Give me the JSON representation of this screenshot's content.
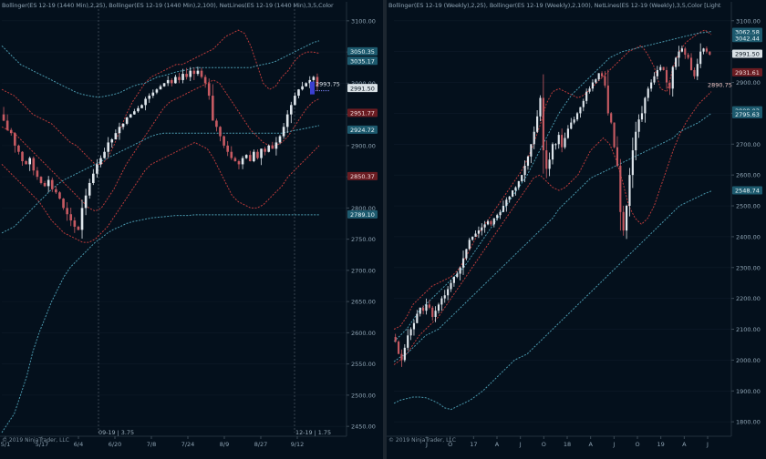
{
  "colors": {
    "background": "#04101c",
    "candle_up": "#dfe6ec",
    "candle_down": "#c65a62",
    "boll_short": "#b93a3a",
    "boll_long": "#4a98ad",
    "axis_text": "#8ea3b3"
  },
  "left_panel": {
    "indicator_labels": [
      "Bollinger(ES 12-19 (1440 Min),2,25)",
      "Bollinger(ES 12-19 (1440 Min),2,100)",
      "NetLines(ES 12-19 (1440 Min),3,5,Color"
    ],
    "copyright": "© 2019 NinjaTrader, LLC",
    "session_labels": [
      "09-19 | 3.75",
      "12-19 | 1.75"
    ],
    "last_price_label": "2993.75"
  },
  "right_panel": {
    "indicator_labels": [
      "Bollinger(ES 12-19 (Weekly),2,25)",
      "Bollinger(ES 12-19 (Weekly),2,100)",
      "NetLines(ES 12-19 (Weekly),3,5,Color [Light"
    ],
    "copyright": "© 2019 NinjaTrader, LLC",
    "last_price_label": "2890.75"
  },
  "chart_data": [
    {
      "type": "candlestick",
      "timeframe": "1440 Min",
      "x_ticks": [
        "5/1",
        "5/17",
        "6/4",
        "6/20",
        "7/8",
        "7/24",
        "8/9",
        "8/27",
        "9/12"
      ],
      "y_ticks": [
        2450,
        2500,
        2550,
        2600,
        2650,
        2700,
        2750,
        2800,
        2850,
        2900,
        2950,
        3000,
        3050,
        3100
      ],
      "ylim": [
        2440,
        3110
      ],
      "price_tags": [
        {
          "text": "3050.35",
          "value": 3050.35,
          "style": "cyan"
        },
        {
          "text": "3035.17",
          "value": 3035.17,
          "style": "cyan"
        },
        {
          "text": "2991.50",
          "value": 2991.5,
          "style": "white"
        },
        {
          "text": "2951.77",
          "value": 2951.77,
          "style": "red"
        },
        {
          "text": "2924.72",
          "value": 2924.72,
          "style": "cyan"
        },
        {
          "text": "2850.37",
          "value": 2850.37,
          "style": "red"
        },
        {
          "text": "2789.10",
          "value": 2789.1,
          "style": "cyan"
        }
      ],
      "close": [
        2940,
        2925,
        2920,
        2900,
        2890,
        2875,
        2870,
        2880,
        2860,
        2850,
        2840,
        2835,
        2845,
        2830,
        2825,
        2815,
        2800,
        2790,
        2780,
        2770,
        2765,
        2800,
        2820,
        2840,
        2855,
        2870,
        2880,
        2890,
        2905,
        2910,
        2920,
        2930,
        2935,
        2945,
        2950,
        2955,
        2960,
        2965,
        2975,
        2980,
        2985,
        2990,
        2995,
        3000,
        3005,
        3000,
        3010,
        3005,
        3015,
        3010,
        3020,
        3015,
        3020,
        3010,
        3000,
        2980,
        2940,
        2930,
        2915,
        2900,
        2890,
        2880,
        2875,
        2870,
        2880,
        2885,
        2875,
        2890,
        2880,
        2895,
        2890,
        2900,
        2895,
        2905,
        2915,
        2930,
        2950,
        2965,
        2980,
        2990,
        2995,
        3000,
        3005,
        3010,
        2995
      ],
      "series": [
        {
          "name": "BB25 upper",
          "values": [
            2990,
            2985,
            2980,
            2970,
            2960,
            2950,
            2945,
            2940,
            2935,
            2925,
            2915,
            2905,
            2900,
            2890,
            2880,
            2870,
            2870,
            2880,
            2900,
            2925,
            2950,
            2970,
            2985,
            3000,
            3010,
            3015,
            3020,
            3025,
            3030,
            3030,
            3035,
            3040,
            3045,
            3050,
            3055,
            3065,
            3075,
            3080,
            3085,
            3080,
            3060,
            3030,
            3000,
            2990,
            2995,
            3010,
            3020,
            3035,
            3045,
            3050,
            3050,
            3048
          ],
          "style": "red-dotted"
        },
        {
          "name": "BB25 mid",
          "values": [
            2930,
            2925,
            2920,
            2910,
            2900,
            2890,
            2880,
            2870,
            2860,
            2850,
            2840,
            2830,
            2820,
            2810,
            2800,
            2795,
            2800,
            2815,
            2830,
            2850,
            2870,
            2885,
            2900,
            2915,
            2930,
            2945,
            2960,
            2970,
            2975,
            2980,
            2985,
            2990,
            2995,
            3000,
            3005,
            3000,
            2985,
            2970,
            2955,
            2940,
            2925,
            2915,
            2905,
            2900,
            2900,
            2905,
            2915,
            2930,
            2945,
            2960,
            2970,
            2975
          ],
          "style": "red-dotted"
        },
        {
          "name": "BB25 lower",
          "values": [
            2870,
            2860,
            2850,
            2840,
            2830,
            2820,
            2810,
            2795,
            2780,
            2770,
            2760,
            2755,
            2750,
            2745,
            2745,
            2750,
            2760,
            2770,
            2785,
            2800,
            2815,
            2830,
            2845,
            2860,
            2870,
            2875,
            2880,
            2885,
            2890,
            2895,
            2900,
            2905,
            2900,
            2895,
            2880,
            2860,
            2840,
            2820,
            2810,
            2805,
            2800,
            2800,
            2805,
            2815,
            2825,
            2835,
            2850,
            2860,
            2870,
            2880,
            2890,
            2900
          ],
          "style": "red-dotted"
        },
        {
          "name": "BB100 upper",
          "values": [
            3060,
            3050,
            3040,
            3030,
            3025,
            3020,
            3015,
            3010,
            3005,
            3000,
            2995,
            2990,
            2985,
            2982,
            2980,
            2978,
            2978,
            2980,
            2982,
            2985,
            2990,
            2995,
            2998,
            3000,
            3005,
            3010,
            3012,
            3015,
            3018,
            3020,
            3022,
            3025,
            3025,
            3025,
            3025,
            3025,
            3025,
            3025,
            3025,
            3025,
            3025,
            3028,
            3030,
            3032,
            3035,
            3040,
            3045,
            3050,
            3055,
            3060,
            3065,
            3068
          ],
          "style": "cyan-dotted"
        },
        {
          "name": "BB100 mid",
          "values": [
            2760,
            2765,
            2770,
            2780,
            2790,
            2800,
            2810,
            2820,
            2830,
            2838,
            2845,
            2850,
            2855,
            2860,
            2865,
            2870,
            2875,
            2880,
            2885,
            2890,
            2895,
            2900,
            2905,
            2910,
            2915,
            2918,
            2920,
            2920,
            2920,
            2920,
            2920,
            2920,
            2920,
            2920,
            2920,
            2920,
            2920,
            2920,
            2920,
            2920,
            2920,
            2920,
            2920,
            2920,
            2920,
            2920,
            2922,
            2924,
            2926,
            2928,
            2930,
            2932
          ],
          "style": "cyan-dotted"
        },
        {
          "name": "BB100 lower",
          "values": [
            2440,
            2455,
            2470,
            2500,
            2530,
            2570,
            2600,
            2625,
            2650,
            2670,
            2690,
            2705,
            2715,
            2725,
            2735,
            2745,
            2752,
            2760,
            2766,
            2770,
            2775,
            2778,
            2780,
            2782,
            2784,
            2785,
            2786,
            2787,
            2788,
            2788,
            2788,
            2789,
            2789,
            2789,
            2789,
            2789,
            2789,
            2789,
            2789,
            2789,
            2789,
            2789,
            2789,
            2789,
            2789,
            2789,
            2789,
            2789,
            2789,
            2789,
            2789,
            2789
          ],
          "style": "cyan-dotted"
        }
      ]
    },
    {
      "type": "candlestick",
      "timeframe": "Weekly",
      "x_ticks": [
        "J",
        "O",
        "17",
        "A",
        "J",
        "O",
        "18",
        "A",
        "J",
        "O",
        "19",
        "A",
        "J"
      ],
      "y_ticks": [
        1800,
        1900,
        2000,
        2100,
        2200,
        2300,
        2400,
        2500,
        2600,
        2700,
        2800,
        2900,
        3000,
        3100
      ],
      "ylim": [
        1765,
        3120
      ],
      "price_tags": [
        {
          "text": "3062.58",
          "value": 3062.58,
          "style": "cyan"
        },
        {
          "text": "3042.44",
          "value": 3042.44,
          "style": "cyan"
        },
        {
          "text": "2991.50",
          "value": 2991.5,
          "style": "white"
        },
        {
          "text": "2931.61",
          "value": 2931.61,
          "style": "red"
        },
        {
          "text": "2808.03",
          "value": 2808.03,
          "style": "cyan"
        },
        {
          "text": "2795.63",
          "value": 2795.63,
          "style": "cyan"
        },
        {
          "text": "2548.74",
          "value": 2548.74,
          "style": "cyan"
        }
      ],
      "close": [
        2060,
        2020,
        2000,
        2040,
        2080,
        2100,
        2120,
        2150,
        2170,
        2160,
        2180,
        2170,
        2140,
        2160,
        2180,
        2200,
        2210,
        2230,
        2250,
        2270,
        2280,
        2300,
        2330,
        2360,
        2390,
        2400,
        2410,
        2420,
        2430,
        2440,
        2450,
        2440,
        2460,
        2470,
        2480,
        2500,
        2520,
        2530,
        2550,
        2560,
        2580,
        2600,
        2630,
        2660,
        2700,
        2740,
        2790,
        2850,
        2680,
        2620,
        2650,
        2700,
        2700,
        2730,
        2690,
        2720,
        2750,
        2770,
        2780,
        2800,
        2820,
        2840,
        2870,
        2880,
        2900,
        2910,
        2930,
        2920,
        2890,
        2800,
        2770,
        2690,
        2630,
        2480,
        2420,
        2500,
        2600,
        2680,
        2740,
        2780,
        2800,
        2850,
        2880,
        2900,
        2920,
        2940,
        2950,
        2940,
        2900,
        2880,
        2950,
        2980,
        3000,
        3010,
        2990,
        2980,
        2940,
        2920,
        2960,
        3000,
        3010,
        3000,
        2990
      ],
      "series": [
        {
          "name": "BB25 upper",
          "values": [
            2100,
            2110,
            2140,
            2180,
            2200,
            2220,
            2240,
            2250,
            2260,
            2270,
            2290,
            2320,
            2360,
            2400,
            2430,
            2460,
            2490,
            2520,
            2550,
            2580,
            2610,
            2650,
            2700,
            2760,
            2830,
            2870,
            2880,
            2870,
            2860,
            2850,
            2860,
            2880,
            2900,
            2920,
            2940,
            2960,
            2980,
            3000,
            3010,
            3020,
            2990,
            2950,
            2880,
            2870,
            2950,
            3000,
            3030,
            3045,
            3060,
            3070,
            3055
          ],
          "style": "red-dotted"
        },
        {
          "name": "BB25 lower",
          "values": [
            1985,
            2000,
            2020,
            2050,
            2080,
            2100,
            2120,
            2140,
            2170,
            2200,
            2230,
            2260,
            2290,
            2320,
            2350,
            2380,
            2410,
            2440,
            2470,
            2500,
            2530,
            2560,
            2590,
            2600,
            2580,
            2560,
            2550,
            2560,
            2580,
            2600,
            2640,
            2680,
            2700,
            2720,
            2700,
            2650,
            2580,
            2500,
            2460,
            2440,
            2460,
            2500,
            2560,
            2620,
            2680,
            2730,
            2770,
            2800,
            2830,
            2850,
            2870
          ],
          "style": "red-dotted"
        },
        {
          "name": "BB100 upper",
          "values": [
            2060,
            2080,
            2100,
            2130,
            2160,
            2180,
            2200,
            2220,
            2240,
            2260,
            2280,
            2300,
            2330,
            2360,
            2390,
            2420,
            2450,
            2480,
            2510,
            2540,
            2570,
            2600,
            2640,
            2680,
            2720,
            2760,
            2800,
            2830,
            2860,
            2880,
            2900,
            2920,
            2940,
            2960,
            2980,
            2990,
            3000,
            3005,
            3010,
            3015,
            3020,
            3025,
            3030,
            3035,
            3040,
            3045,
            3050,
            3055,
            3060,
            3062,
            3065
          ],
          "style": "cyan-dotted"
        },
        {
          "name": "BB100 mid",
          "values": [
            1995,
            2010,
            2020,
            2040,
            2060,
            2080,
            2090,
            2100,
            2120,
            2140,
            2160,
            2180,
            2200,
            2220,
            2240,
            2260,
            2280,
            2300,
            2320,
            2340,
            2360,
            2380,
            2400,
            2420,
            2440,
            2460,
            2490,
            2510,
            2530,
            2550,
            2570,
            2590,
            2600,
            2610,
            2620,
            2630,
            2640,
            2650,
            2660,
            2670,
            2680,
            2690,
            2700,
            2710,
            2720,
            2740,
            2750,
            2760,
            2770,
            2785,
            2800
          ],
          "style": "cyan-dotted"
        },
        {
          "name": "BB100 lower",
          "values": [
            1860,
            1870,
            1875,
            1880,
            1880,
            1878,
            1870,
            1860,
            1845,
            1840,
            1850,
            1860,
            1870,
            1885,
            1900,
            1920,
            1940,
            1960,
            1980,
            2000,
            2010,
            2020,
            2040,
            2060,
            2080,
            2100,
            2120,
            2140,
            2160,
            2180,
            2200,
            2220,
            2240,
            2260,
            2280,
            2300,
            2320,
            2340,
            2360,
            2380,
            2400,
            2420,
            2440,
            2460,
            2480,
            2500,
            2510,
            2520,
            2530,
            2540,
            2548
          ],
          "style": "cyan-dotted"
        }
      ]
    }
  ]
}
